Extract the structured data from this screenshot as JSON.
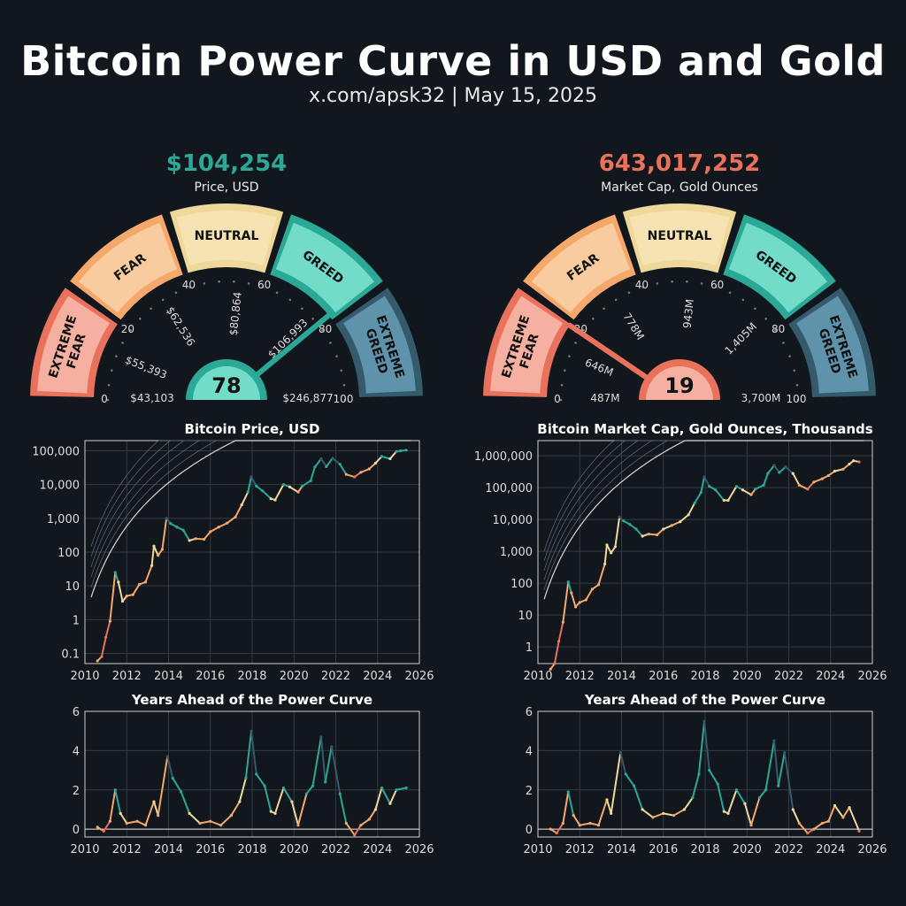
{
  "header": {
    "title": "Bitcoin Power Curve in USD and Gold",
    "subtitle": "x.com/apsk32 | May 15, 2025"
  },
  "colors": {
    "background": "#12161d",
    "extreme_fear": "#e9725c",
    "fear": "#f4a86a",
    "neutral": "#f0d79a",
    "greed": "#2ba996",
    "extreme_greed": "#355a6b",
    "power_line": "#d9d9d9"
  },
  "gauges": [
    {
      "value_label": "$104,254",
      "value_color": "#2ba996",
      "caption": "Price, USD",
      "score": "78",
      "score_value": 78,
      "segments": [
        "EXTREME FEAR",
        "FEAR",
        "NEUTRAL",
        "GREED",
        "EXTREME GREED"
      ],
      "scale_ticks": [
        "0",
        "20",
        "40",
        "60",
        "80",
        "100"
      ],
      "price_levels": [
        "$43,103",
        "$55,393",
        "$62,536",
        "$80,864",
        "$106,993",
        "$246,877"
      ]
    },
    {
      "value_label": "643,017,252",
      "value_color": "#e9725c",
      "caption": "Market Cap, Gold Ounces",
      "score": "19",
      "score_value": 19,
      "segments": [
        "EXTREME FEAR",
        "FEAR",
        "NEUTRAL",
        "GREED",
        "EXTREME GREED"
      ],
      "scale_ticks": [
        "0",
        "20",
        "40",
        "60",
        "80",
        "100"
      ],
      "price_levels": [
        "487M",
        "646M",
        "778M",
        "943M",
        "1,405M",
        "3,700M"
      ]
    }
  ],
  "chart_data": [
    {
      "type": "line",
      "title": "Bitcoin Price, USD",
      "yscale": "log",
      "xlim": [
        2010,
        2026
      ],
      "ylim": [
        0.05,
        200000
      ],
      "xticks": [
        "2010",
        "2012",
        "2014",
        "2016",
        "2018",
        "2020",
        "2022",
        "2024",
        "2026"
      ],
      "yticks": [
        {
          "label": "0.1",
          "value": 0.1
        },
        {
          "label": "1",
          "value": 1
        },
        {
          "label": "10",
          "value": 10
        },
        {
          "label": "100",
          "value": 100
        },
        {
          "label": "1,000",
          "value": 1000
        },
        {
          "label": "10,000",
          "value": 10000
        },
        {
          "label": "100,000",
          "value": 100000
        }
      ],
      "series": [
        {
          "x": [
            2010.6,
            2010.8,
            2011.0,
            2011.2,
            2011.45,
            2011.6,
            2011.8,
            2012.0,
            2012.3,
            2012.6,
            2012.9,
            2013.2,
            2013.3,
            2013.5,
            2013.7,
            2013.9,
            2014.1,
            2014.4,
            2014.7,
            2015.0,
            2015.3,
            2015.7,
            2016.0,
            2016.4,
            2016.8,
            2017.2,
            2017.5,
            2017.8,
            2017.96,
            2018.2,
            2018.5,
            2018.9,
            2019.1,
            2019.5,
            2019.8,
            2020.2,
            2020.4,
            2020.8,
            2021.0,
            2021.3,
            2021.55,
            2021.85,
            2022.2,
            2022.5,
            2022.9,
            2023.2,
            2023.6,
            2023.9,
            2024.2,
            2024.6,
            2024.9,
            2025.1,
            2025.37
          ],
          "values": [
            0.06,
            0.08,
            0.3,
            0.9,
            25,
            13,
            3.5,
            5,
            5.5,
            11,
            13,
            40,
            150,
            80,
            120,
            1000,
            700,
            550,
            450,
            220,
            250,
            240,
            400,
            550,
            720,
            1100,
            2500,
            6000,
            17000,
            9000,
            6500,
            3800,
            3500,
            10000,
            8500,
            6000,
            9000,
            13000,
            33000,
            58000,
            34000,
            60000,
            40000,
            20000,
            16800,
            23000,
            29000,
            43000,
            68000,
            58000,
            95000,
            100000,
            104254
          ]
        }
      ],
      "power_curve": {
        "x0": 2009.0,
        "k": 5.8,
        "at_x1": 1.0,
        "bands": [
          2,
          4,
          8,
          16,
          32
        ]
      }
    },
    {
      "type": "line",
      "title": "Bitcoin Market Cap, Gold Ounces, Thousands",
      "yscale": "log",
      "xlim": [
        2010,
        2026
      ],
      "ylim": [
        0.3,
        3000000
      ],
      "xticks": [
        "2010",
        "2012",
        "2014",
        "2016",
        "2018",
        "2020",
        "2022",
        "2024",
        "2026"
      ],
      "yticks": [
        {
          "label": "1",
          "value": 1
        },
        {
          "label": "10",
          "value": 10
        },
        {
          "label": "100",
          "value": 100
        },
        {
          "label": "1,000",
          "value": 1000
        },
        {
          "label": "10,000",
          "value": 10000
        },
        {
          "label": "100,000",
          "value": 100000
        },
        {
          "label": "1,000,000",
          "value": 1000000
        }
      ],
      "series": [
        {
          "x": [
            2010.6,
            2010.8,
            2011.0,
            2011.2,
            2011.45,
            2011.6,
            2011.8,
            2012.0,
            2012.3,
            2012.6,
            2012.9,
            2013.2,
            2013.3,
            2013.5,
            2013.7,
            2013.9,
            2014.1,
            2014.4,
            2014.7,
            2015.0,
            2015.3,
            2015.7,
            2016.0,
            2016.4,
            2016.8,
            2017.2,
            2017.5,
            2017.8,
            2017.96,
            2018.2,
            2018.5,
            2018.9,
            2019.1,
            2019.5,
            2019.8,
            2020.2,
            2020.4,
            2020.8,
            2021.0,
            2021.3,
            2021.55,
            2021.85,
            2022.2,
            2022.5,
            2022.9,
            2023.2,
            2023.6,
            2023.9,
            2024.2,
            2024.6,
            2024.9,
            2025.1,
            2025.37
          ],
          "values": [
            0.2,
            0.3,
            1.5,
            6,
            110,
            50,
            18,
            25,
            30,
            65,
            90,
            400,
            1600,
            900,
            1400,
            12000,
            9000,
            7000,
            5000,
            3000,
            3500,
            3300,
            5000,
            6500,
            8500,
            14000,
            33000,
            70000,
            220000,
            110000,
            85000,
            40000,
            40000,
            110000,
            85000,
            60000,
            90000,
            120000,
            280000,
            500000,
            300000,
            450000,
            280000,
            120000,
            90000,
            150000,
            190000,
            240000,
            330000,
            380000,
            550000,
            700000,
            643017
          ]
        }
      ],
      "power_curve": {
        "x0": 2009.0,
        "k": 6.3,
        "at_x1": 6.0,
        "bands": [
          2,
          4,
          8,
          16,
          32
        ]
      }
    },
    {
      "type": "line",
      "title": "Years Ahead of the Power Curve",
      "xlim": [
        2010,
        2026
      ],
      "ylim": [
        -0.4,
        6
      ],
      "xticks": [
        "2010",
        "2012",
        "2014",
        "2016",
        "2018",
        "2020",
        "2022",
        "2024",
        "2026"
      ],
      "yticks": [
        {
          "label": "0",
          "value": 0
        },
        {
          "label": "2",
          "value": 2
        },
        {
          "label": "4",
          "value": 4
        },
        {
          "label": "6",
          "value": 6
        }
      ],
      "series": [
        {
          "x": [
            2010.6,
            2010.9,
            2011.2,
            2011.45,
            2011.7,
            2012.0,
            2012.5,
            2012.9,
            2013.3,
            2013.5,
            2013.95,
            2014.2,
            2014.6,
            2015.0,
            2015.5,
            2016.0,
            2016.5,
            2017.0,
            2017.4,
            2017.7,
            2017.96,
            2018.2,
            2018.6,
            2018.9,
            2019.1,
            2019.5,
            2019.9,
            2020.2,
            2020.6,
            2020.9,
            2021.3,
            2021.5,
            2021.8,
            2022.2,
            2022.5,
            2022.9,
            2023.2,
            2023.6,
            2023.9,
            2024.2,
            2024.6,
            2024.9,
            2025.37
          ],
          "values": [
            0.1,
            -0.1,
            0.4,
            2.0,
            0.8,
            0.3,
            0.4,
            0.2,
            1.4,
            0.7,
            3.7,
            2.6,
            1.9,
            0.8,
            0.3,
            0.4,
            0.2,
            0.7,
            1.4,
            2.6,
            5.0,
            2.8,
            2.2,
            0.9,
            0.8,
            2.1,
            1.4,
            0.2,
            1.8,
            2.2,
            4.7,
            2.4,
            4.2,
            1.8,
            0.3,
            -0.3,
            0.2,
            0.5,
            1.0,
            2.1,
            1.3,
            2.0,
            2.1
          ]
        }
      ]
    },
    {
      "type": "line",
      "title": "Years Ahead of the Power Curve",
      "xlim": [
        2010,
        2026
      ],
      "ylim": [
        -0.4,
        6
      ],
      "xticks": [
        "2010",
        "2012",
        "2014",
        "2016",
        "2018",
        "2020",
        "2022",
        "2024",
        "2026"
      ],
      "yticks": [
        {
          "label": "0",
          "value": 0
        },
        {
          "label": "2",
          "value": 2
        },
        {
          "label": "4",
          "value": 4
        },
        {
          "label": "6",
          "value": 6
        }
      ],
      "series": [
        {
          "x": [
            2010.6,
            2010.9,
            2011.2,
            2011.45,
            2011.7,
            2012.0,
            2012.5,
            2012.9,
            2013.3,
            2013.5,
            2013.95,
            2014.2,
            2014.6,
            2015.0,
            2015.5,
            2016.0,
            2016.5,
            2017.0,
            2017.4,
            2017.7,
            2017.96,
            2018.2,
            2018.6,
            2018.9,
            2019.1,
            2019.5,
            2019.9,
            2020.2,
            2020.6,
            2020.9,
            2021.3,
            2021.5,
            2021.8,
            2022.2,
            2022.5,
            2022.9,
            2023.2,
            2023.6,
            2023.9,
            2024.2,
            2024.6,
            2024.9,
            2025.37
          ],
          "values": [
            0.0,
            -0.2,
            0.3,
            1.9,
            0.7,
            0.2,
            0.3,
            0.2,
            1.5,
            0.8,
            3.9,
            2.8,
            2.2,
            1.0,
            0.6,
            0.8,
            0.7,
            1.0,
            1.6,
            2.8,
            5.5,
            3.0,
            2.3,
            0.9,
            0.8,
            2.0,
            1.3,
            0.2,
            1.6,
            2.0,
            4.5,
            2.2,
            3.9,
            1.0,
            0.3,
            -0.2,
            0.0,
            0.3,
            0.4,
            1.2,
            0.6,
            1.1,
            -0.1
          ]
        }
      ]
    }
  ]
}
